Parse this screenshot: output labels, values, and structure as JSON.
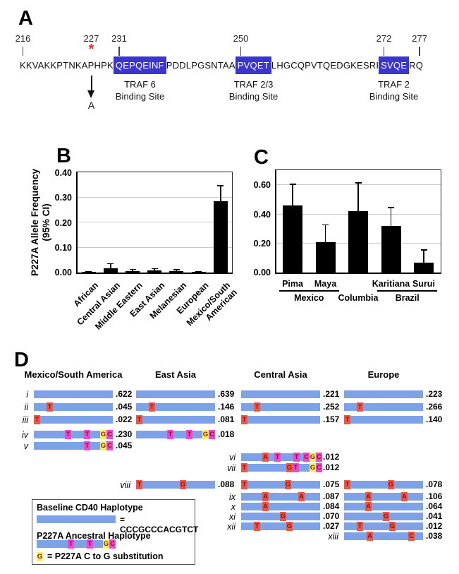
{
  "panel_a": {
    "label": "A",
    "segments": [
      {
        "text": "KKVAKKPTNKAPHPK",
        "highlight": false
      },
      {
        "text": "QEPQEINF",
        "highlight": true
      },
      {
        "text": "PDDLPGSNTAA",
        "highlight": false
      },
      {
        "text": "PVQET",
        "highlight": true
      },
      {
        "text": "LHGCQPVTQEDGKESRI",
        "highlight": false
      },
      {
        "text": "SVQE",
        "highlight": true
      },
      {
        "text": "RQ",
        "highlight": false
      }
    ],
    "markers": [
      {
        "label": "216",
        "char_index": 0
      },
      {
        "label": "227",
        "char_index": 11,
        "asterisk": true
      },
      {
        "label": "231",
        "char_index": 15
      },
      {
        "label": "250",
        "char_index": 34
      },
      {
        "label": "272",
        "char_index": 56
      },
      {
        "label": "277",
        "char_index": 61
      }
    ],
    "mutation": {
      "char_index": 11,
      "to": "A"
    },
    "sites": [
      {
        "segment_index": 1,
        "line1": "TRAF 6",
        "line2": "Binding Site"
      },
      {
        "segment_index": 3,
        "line1": "TRAF 2/3",
        "line2": "Binding Site"
      },
      {
        "segment_index": 5,
        "line1": "TRAF 2",
        "line2": "Binding Site"
      }
    ],
    "highlight_color": "#3b35cf",
    "asterisk_color": "#e03428"
  },
  "chart_data": [
    {
      "panel_label": "B",
      "type": "bar",
      "title": "",
      "xlabel": "",
      "ylabel": "P227A Allele Frequency\n(95% CI)",
      "categories": [
        "African",
        "Central Asian",
        "Middle Eastern",
        "East Asian",
        "Melanesian",
        "European",
        "Mexico/South\nAmerican"
      ],
      "values": [
        0.002,
        0.016,
        0.007,
        0.009,
        0.005,
        0.002,
        0.287
      ],
      "ci_upper": [
        0.005,
        0.038,
        0.015,
        0.018,
        0.013,
        0.005,
        0.35
      ],
      "ylim": [
        0,
        0.4
      ],
      "yticks": [
        0.0,
        0.1,
        0.2,
        0.3,
        0.4
      ],
      "grid": true,
      "bar_color": "#000000",
      "legend_position": "none"
    },
    {
      "panel_label": "C",
      "type": "bar",
      "title": "",
      "xlabel": "",
      "ylabel": "",
      "categories": [
        "Pima",
        "Maya",
        "",
        "Karitiana",
        "Surui"
      ],
      "values": [
        0.46,
        0.21,
        0.42,
        0.32,
        0.07
      ],
      "ci_upper": [
        0.61,
        0.33,
        0.62,
        0.45,
        0.16
      ],
      "groups": [
        {
          "label": "Mexico",
          "span": [
            0,
            1
          ],
          "underline": true
        },
        {
          "label": "Columbia",
          "span": [
            2,
            2
          ],
          "underline": false
        },
        {
          "label": "Brazil",
          "span": [
            3,
            4
          ],
          "underline": true
        }
      ],
      "ylim": [
        0,
        0.7
      ],
      "yticks": [
        0.0,
        0.2,
        0.4,
        0.6
      ],
      "grid": true,
      "bar_color": "#000000",
      "legend_position": "none"
    }
  ],
  "panel_d": {
    "label": "D",
    "columns": [
      {
        "id": "msa",
        "header": "Mexico/South America"
      },
      {
        "id": "ea",
        "header": "East Asia"
      },
      {
        "id": "ca",
        "header": "Central Asia"
      },
      {
        "id": "eu",
        "header": "Europe"
      }
    ],
    "rows": [
      {
        "numeral": "i",
        "id": "i",
        "variants": [],
        "freqs": {
          "msa": ".622",
          "ea": ".639",
          "ca": ".221",
          "eu": ".223"
        }
      },
      {
        "numeral": "ii",
        "id": "ii",
        "variants": [
          {
            "x": 18,
            "l": "T",
            "c": "red"
          }
        ],
        "freqs": {
          "msa": ".045",
          "ea": ".146",
          "ca": ".252",
          "eu": ".266"
        }
      },
      {
        "numeral": "iii",
        "id": "iii",
        "variants": [
          {
            "x": 0,
            "l": "T",
            "c": "red"
          }
        ],
        "freqs": {
          "msa": ".022",
          "ea": ".081",
          "ca": ".157",
          "eu": ".140"
        }
      },
      {
        "numeral": "iv",
        "id": "iv",
        "variants": [
          {
            "x": 44,
            "l": "T",
            "c": "mag"
          },
          {
            "x": 71,
            "l": "T",
            "c": "mag"
          },
          {
            "x": 94,
            "l": "G",
            "c": "yel"
          },
          {
            "x": 103,
            "l": "C",
            "c": "mag"
          }
        ],
        "freqs": {
          "msa": ".230",
          "ea": ".018"
        }
      },
      {
        "numeral": "v",
        "id": "v",
        "variants": [
          {
            "x": 71,
            "l": "T",
            "c": "mag"
          },
          {
            "x": 94,
            "l": "G",
            "c": "yel"
          },
          {
            "x": 103,
            "l": "C",
            "c": "mag"
          }
        ],
        "freqs": {
          "msa": ".045"
        }
      },
      {
        "numeral": "vi",
        "id": "vi",
        "variants": [
          {
            "x": 30,
            "l": "A",
            "c": "red"
          },
          {
            "x": 47,
            "l": "T",
            "c": "mag"
          },
          {
            "x": 74,
            "l": "T",
            "c": "mag"
          },
          {
            "x": 88,
            "l": "C",
            "c": "mag"
          },
          {
            "x": 97,
            "l": "G",
            "c": "yel"
          },
          {
            "x": 106,
            "l": "C",
            "c": "mag"
          }
        ],
        "freqs": {
          "ca": ".012"
        }
      },
      {
        "numeral": "vii",
        "id": "vii",
        "variants": [
          {
            "x": 0,
            "l": "T",
            "c": "red"
          },
          {
            "x": 64,
            "l": "G",
            "c": "red"
          },
          {
            "x": 73,
            "l": "T",
            "c": "mag"
          },
          {
            "x": 97,
            "l": "G",
            "c": "yel"
          },
          {
            "x": 106,
            "l": "C",
            "c": "mag"
          }
        ],
        "freqs": {
          "ca": ".012"
        }
      },
      {
        "numeral": "viii",
        "id": "viii",
        "variants": [
          {
            "x": 0,
            "l": "T",
            "c": "red"
          },
          {
            "x": 62,
            "l": "G",
            "c": "red"
          }
        ],
        "freqs": {
          "ea": ".088",
          "ca": ".075",
          "eu": ".078"
        }
      },
      {
        "numeral": "ix",
        "id": "ix",
        "variants": [
          {
            "x": 30,
            "l": "A",
            "c": "red"
          },
          {
            "x": 81,
            "l": "A",
            "c": "red"
          }
        ],
        "freqs": {
          "ca": ".087",
          "eu": ".106"
        }
      },
      {
        "numeral": "x",
        "id": "x",
        "variants": [
          {
            "x": 30,
            "l": "A",
            "c": "red"
          }
        ],
        "freqs": {
          "ca": ".084",
          "eu": ".064"
        }
      },
      {
        "numeral": "xi",
        "id": "xi",
        "variants": [
          {
            "x": 55,
            "l": "G",
            "c": "red"
          }
        ],
        "freqs": {
          "ca": ".070",
          "eu": ".041"
        }
      },
      {
        "numeral": "xii",
        "id": "xii",
        "variants": [
          {
            "x": 18,
            "l": "T",
            "c": "red"
          },
          {
            "x": 64,
            "l": "G",
            "c": "red"
          }
        ],
        "freqs": {
          "ca": ".027",
          "eu": ".012"
        }
      },
      {
        "numeral": "xiii",
        "id": "xiii",
        "variants": [
          {
            "x": 32,
            "l": "A",
            "c": "red"
          },
          {
            "x": 91,
            "l": "C",
            "c": "red"
          }
        ],
        "freqs": {
          "eu": ".038"
        }
      }
    ],
    "legend": {
      "baseline_title": "Baseline CD40 Haplotype",
      "baseline_eq": "= CCCGCCCACGTCT",
      "ancestral_title": "P227A Ancestral Haplotype",
      "ancestral_variants": [
        {
          "x": 44,
          "l": "T",
          "c": "mag"
        },
        {
          "x": 71,
          "l": "T",
          "c": "mag"
        },
        {
          "x": 94,
          "l": "G",
          "c": "yel"
        },
        {
          "x": 103,
          "l": "C",
          "c": "mag"
        }
      ],
      "note_symbol": "G",
      "note_text": "= P227A C to G substitution"
    },
    "colors": {
      "bar": "#7da2e8",
      "red": "#ee5747",
      "mag": "#ef46da",
      "yel": "#f3f263",
      "letter": "#8c1408"
    }
  }
}
